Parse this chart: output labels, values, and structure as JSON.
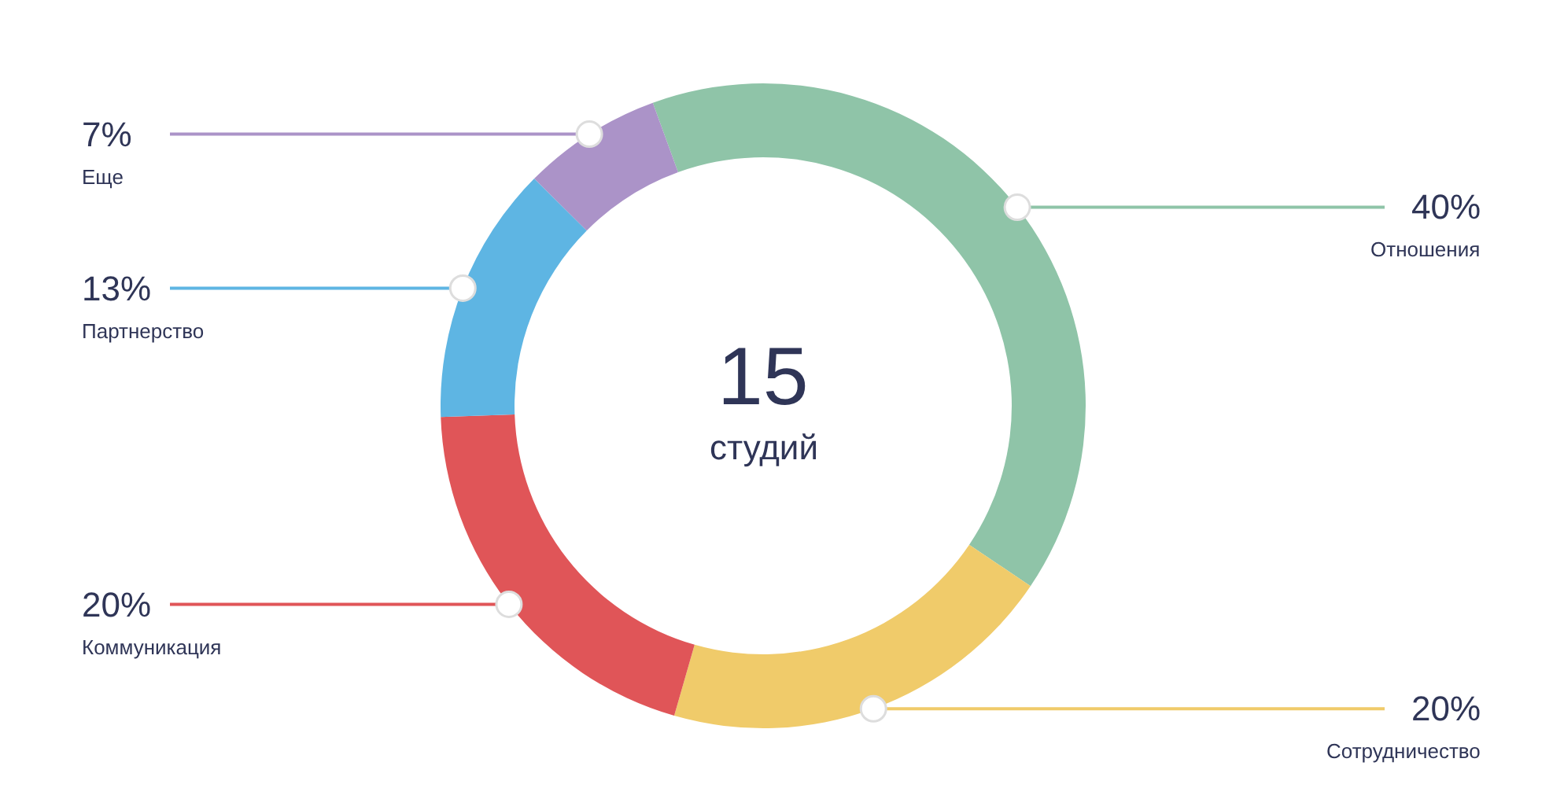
{
  "chart_data": {
    "type": "donut",
    "categories": [
      "Отношения",
      "Сотрудничество",
      "Коммуникация",
      "Партнерство",
      "Еще"
    ],
    "values": [
      40,
      20,
      20,
      13,
      7
    ],
    "colors": [
      "#8fc4a8",
      "#f0cb6a",
      "#e05558",
      "#5eb5e3",
      "#ab93c8"
    ],
    "value_labels": [
      "40%",
      "20%",
      "20%",
      "13%",
      "7%"
    ],
    "annotations": [
      "15",
      "студий"
    ],
    "legend": false
  }
}
